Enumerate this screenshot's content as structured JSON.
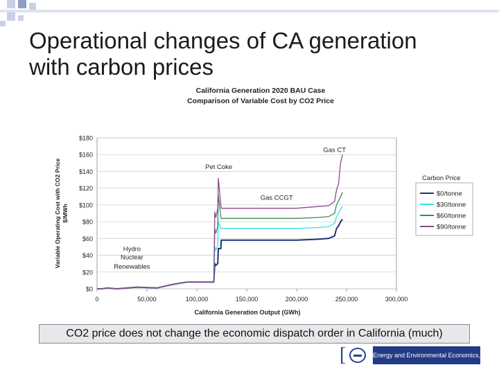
{
  "slide": {
    "title_line1": "Operational changes of CA generation",
    "title_line2": "with carbon prices",
    "caption": "CO2 price does not change the economic dispatch order in California (much)",
    "logo_text": "Energy and Environmental Economics, Inc."
  },
  "colors": {
    "deco": "#c9d0e6",
    "series": [
      "#1f2f7a",
      "#33e0e8",
      "#3f8a55",
      "#8a4a8a"
    ]
  },
  "chart_data": {
    "type": "line",
    "title": "California Generation 2020 BAU Case",
    "subtitle": "Comparison of Variable Cost by CO2 Price",
    "xlabel": "California Generation Output (GWh)",
    "ylabel": "Variable Operating Cost with CO2 Price",
    "ylabel2": "$/MWh",
    "xlim": [
      0,
      300000
    ],
    "ylim": [
      0,
      180
    ],
    "x_ticks": [
      "0",
      "50,000",
      "100,000",
      "150,000",
      "200,000",
      "250,000",
      "300,000"
    ],
    "y_ticks": [
      "$0",
      "$20",
      "$40",
      "$60",
      "$80",
      "$100",
      "$120",
      "$140",
      "$160",
      "$180"
    ],
    "grid": true,
    "legend_title": "Carbon Price",
    "legend_position": "right",
    "annotations": [
      {
        "text": "Gas CT",
        "x": 238000,
        "y": 163
      },
      {
        "text": "Pet Coke",
        "x": 122000,
        "y": 143
      },
      {
        "text": "Gas CCGT",
        "x": 180000,
        "y": 106
      },
      {
        "text": "Hydro",
        "x": 35000,
        "y": 45
      },
      {
        "text": "Nuclear",
        "x": 35000,
        "y": 35
      },
      {
        "text": "Renewables",
        "x": 35000,
        "y": 24
      }
    ],
    "series": [
      {
        "name": "$0/tonne",
        "x": [
          0,
          5000,
          10000,
          20000,
          40000,
          60000,
          75000,
          90000,
          110000,
          117000,
          118000,
          119000,
          121000,
          121500,
          124000,
          124500,
          127000,
          127500,
          200000,
          220000,
          232000,
          238000,
          240000,
          242000,
          244000,
          246000
        ],
        "y": [
          0,
          0,
          1,
          0,
          2,
          1,
          5,
          8,
          8,
          8,
          30,
          28,
          30,
          48,
          48,
          58,
          58,
          58,
          58,
          59,
          60,
          63,
          72,
          75,
          80,
          83
        ]
      },
      {
        "name": "$30/tonne",
        "x": [
          0,
          5000,
          10000,
          20000,
          40000,
          60000,
          75000,
          90000,
          110000,
          117000,
          118000,
          119000,
          121000,
          121500,
          124000,
          124500,
          127000,
          127500,
          200000,
          220000,
          232000,
          238000,
          240000,
          242000,
          244000,
          246000
        ],
        "y": [
          0,
          0,
          1,
          0,
          2,
          1,
          5,
          8,
          8,
          8,
          50,
          46,
          52,
          80,
          72,
          72,
          72,
          72,
          72,
          73,
          74,
          78,
          86,
          90,
          95,
          98
        ]
      },
      {
        "name": "$60/tonne",
        "x": [
          0,
          5000,
          10000,
          20000,
          40000,
          60000,
          75000,
          90000,
          110000,
          117000,
          118000,
          119000,
          121000,
          121500,
          124000,
          124500,
          127000,
          127500,
          200000,
          220000,
          232000,
          238000,
          240000,
          242000,
          244000,
          246000
        ],
        "y": [
          0,
          0,
          1,
          0,
          2,
          1,
          5,
          8,
          8,
          8,
          72,
          66,
          74,
          112,
          86,
          84,
          84,
          84,
          84,
          85,
          86,
          90,
          100,
          105,
          110,
          115
        ]
      },
      {
        "name": "$90/tonne",
        "x": [
          0,
          5000,
          10000,
          20000,
          40000,
          60000,
          75000,
          90000,
          110000,
          117000,
          118000,
          119000,
          121000,
          121500,
          124000,
          124500,
          127000,
          127500,
          200000,
          220000,
          232000,
          238000,
          240000,
          242000,
          244000,
          246000
        ],
        "y": [
          0,
          0,
          1,
          0,
          2,
          1,
          5,
          8,
          8,
          8,
          92,
          85,
          96,
          132,
          100,
          96,
          96,
          96,
          96,
          98,
          99,
          104,
          118,
          125,
          150,
          160
        ]
      }
    ]
  }
}
